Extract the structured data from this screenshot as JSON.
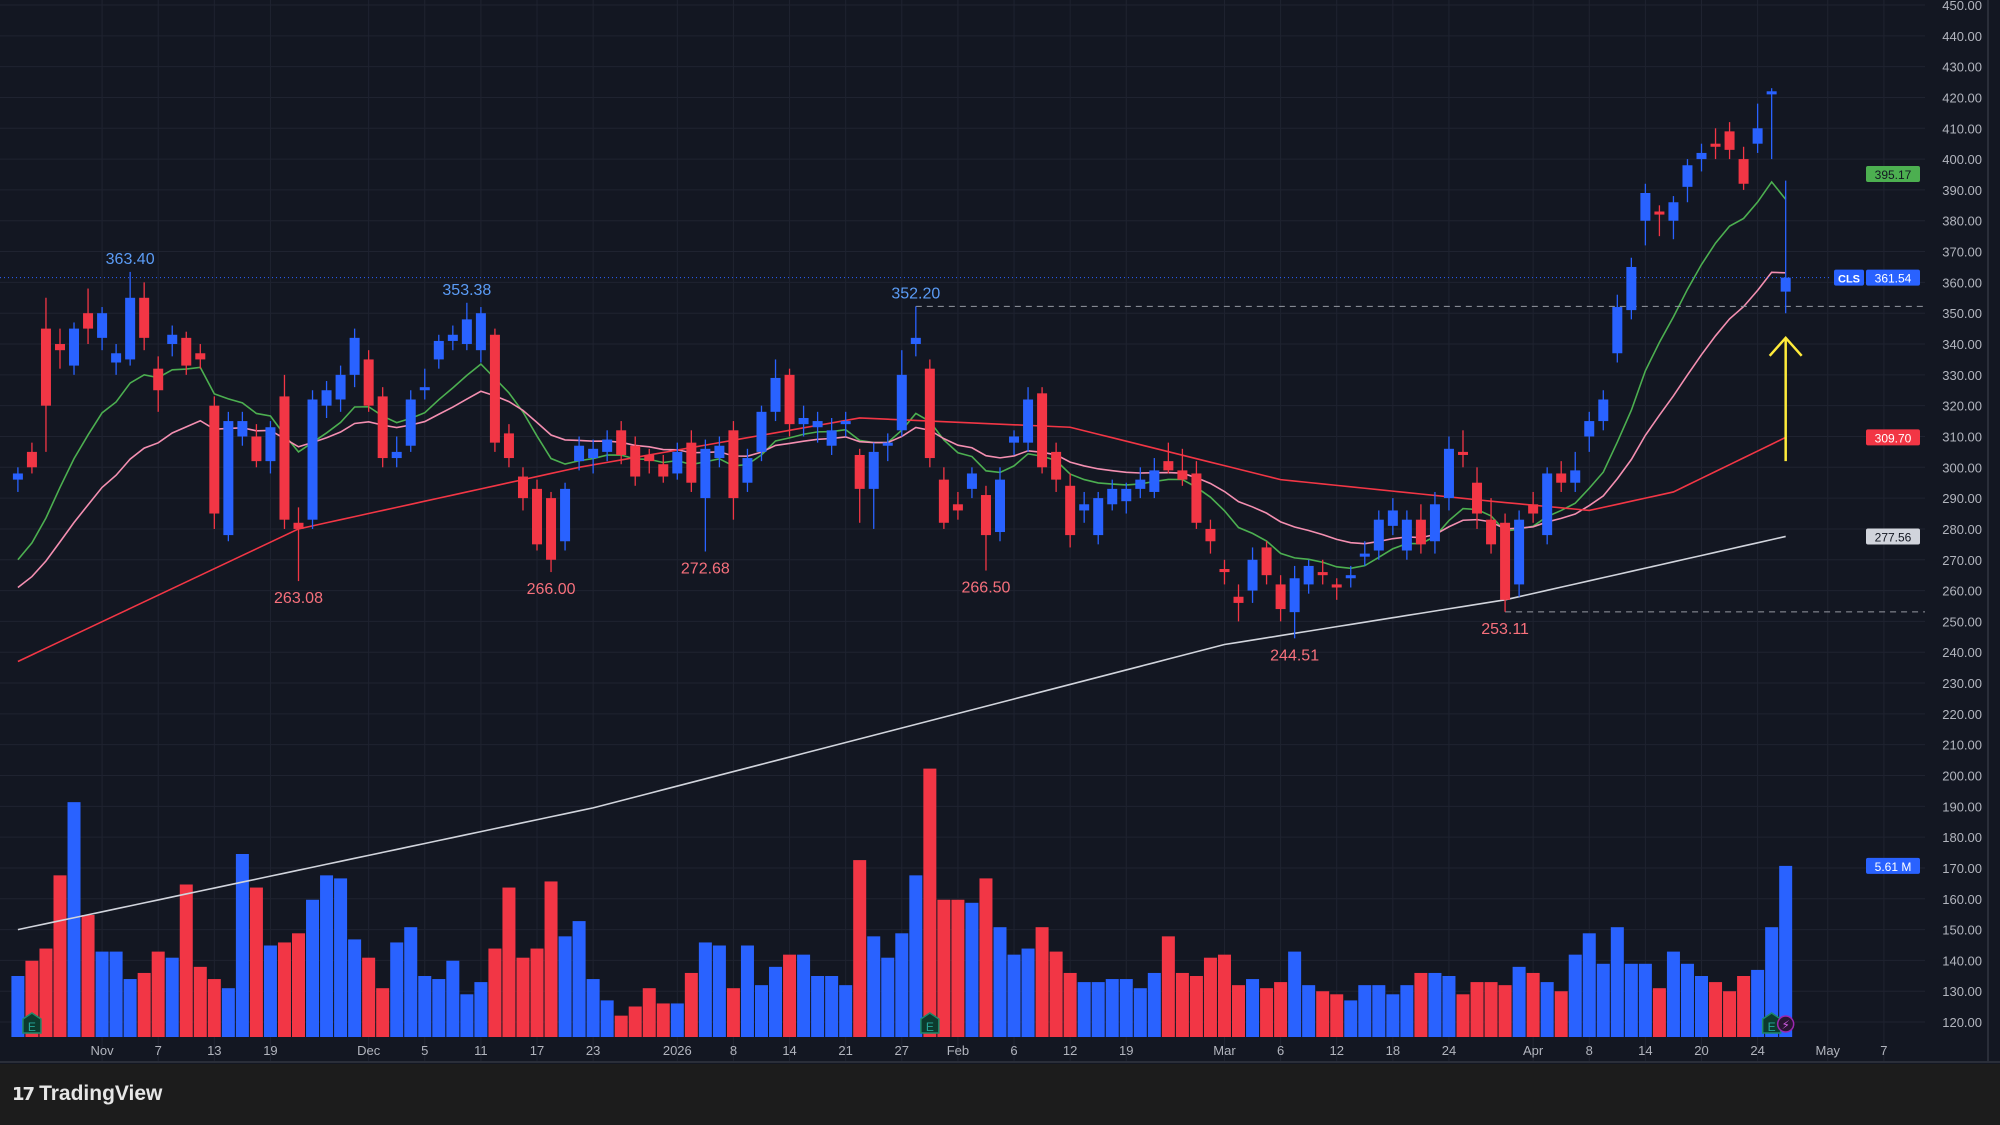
{
  "chart_data": {
    "type": "candlestick",
    "symbol": "CLS",
    "last_price": "361.54",
    "ylim": [
      115,
      450
    ],
    "y_ticks": [
      120,
      130,
      140,
      150,
      160,
      170,
      180,
      190,
      200,
      210,
      220,
      230,
      240,
      250,
      260,
      270,
      280,
      290,
      300,
      310,
      320,
      330,
      340,
      350,
      360,
      370,
      380,
      390,
      400,
      410,
      420,
      430,
      440,
      450
    ],
    "x_ticks": [
      {
        "label": "Nov",
        "i": 6
      },
      {
        "label": "7",
        "i": 10
      },
      {
        "label": "13",
        "i": 14
      },
      {
        "label": "19",
        "i": 18
      },
      {
        "label": "Dec",
        "i": 25
      },
      {
        "label": "5",
        "i": 29
      },
      {
        "label": "11",
        "i": 33
      },
      {
        "label": "17",
        "i": 37
      },
      {
        "label": "23",
        "i": 41
      },
      {
        "label": "2026",
        "i": 47
      },
      {
        "label": "8",
        "i": 51
      },
      {
        "label": "14",
        "i": 55
      },
      {
        "label": "21",
        "i": 59
      },
      {
        "label": "27",
        "i": 63
      },
      {
        "label": "Feb",
        "i": 67
      },
      {
        "label": "6",
        "i": 71
      },
      {
        "label": "12",
        "i": 75
      },
      {
        "label": "19",
        "i": 79
      },
      {
        "label": "Mar",
        "i": 86
      },
      {
        "label": "6",
        "i": 90
      },
      {
        "label": "12",
        "i": 94
      },
      {
        "label": "18",
        "i": 98
      },
      {
        "label": "24",
        "i": 102
      },
      {
        "label": "Apr",
        "i": 108
      },
      {
        "label": "8",
        "i": 112
      },
      {
        "label": "14",
        "i": 116
      },
      {
        "label": "20",
        "i": 120
      },
      {
        "label": "24",
        "i": 124
      },
      {
        "label": "May",
        "i": 129
      },
      {
        "label": "7",
        "i": 133
      }
    ],
    "ohlc": [
      [
        296,
        300,
        292,
        298
      ],
      [
        305,
        308,
        298,
        300
      ],
      [
        345,
        355,
        305,
        320
      ],
      [
        340,
        345,
        332,
        338
      ],
      [
        333,
        347,
        330,
        345
      ],
      [
        350,
        358,
        340,
        345
      ],
      [
        342,
        352,
        338,
        350
      ],
      [
        334,
        340,
        330,
        337
      ],
      [
        335,
        363.4,
        333,
        355
      ],
      [
        355,
        360,
        338,
        342
      ],
      [
        332,
        336,
        318,
        325
      ],
      [
        340,
        346,
        336,
        343
      ],
      [
        342,
        344,
        330,
        333
      ],
      [
        337,
        340,
        332,
        335
      ],
      [
        320,
        323,
        280,
        285
      ],
      [
        278,
        318,
        276,
        315
      ],
      [
        310,
        318,
        307,
        315
      ],
      [
        310,
        314,
        300,
        302
      ],
      [
        302,
        315,
        298,
        313
      ],
      [
        323,
        330,
        280,
        283
      ],
      [
        282,
        287,
        263.08,
        280
      ],
      [
        283,
        325,
        280,
        322
      ],
      [
        320,
        328,
        316,
        325
      ],
      [
        322,
        333,
        318,
        330
      ],
      [
        330,
        345,
        326,
        342
      ],
      [
        335,
        338,
        318,
        320
      ],
      [
        323,
        326,
        300,
        303
      ],
      [
        303,
        310,
        300,
        305
      ],
      [
        307,
        325,
        305,
        322
      ],
      [
        325,
        332,
        322,
        326
      ],
      [
        335,
        343,
        332,
        341
      ],
      [
        341,
        346,
        338,
        343
      ],
      [
        340,
        353.38,
        338,
        348
      ],
      [
        338,
        352,
        334,
        350
      ],
      [
        343,
        345,
        305,
        308
      ],
      [
        311,
        314,
        300,
        303
      ],
      [
        297,
        300,
        286,
        290
      ],
      [
        293,
        296,
        273,
        275
      ],
      [
        290,
        292,
        266,
        270
      ],
      [
        276,
        295,
        273,
        293
      ],
      [
        302,
        310,
        299,
        307
      ],
      [
        303,
        309,
        298,
        306
      ],
      [
        305,
        312,
        302,
        309
      ],
      [
        312,
        315,
        301,
        304
      ],
      [
        307,
        310,
        294,
        297
      ],
      [
        304,
        306,
        298,
        302
      ],
      [
        301,
        304,
        295,
        297
      ],
      [
        298,
        308,
        296,
        305
      ],
      [
        308,
        312,
        292,
        295
      ],
      [
        290,
        309,
        272.68,
        306
      ],
      [
        303,
        310,
        300,
        307
      ],
      [
        312,
        315,
        283,
        290
      ],
      [
        295,
        306,
        292,
        303
      ],
      [
        305,
        320,
        302,
        318
      ],
      [
        318,
        335,
        315,
        329
      ],
      [
        330,
        332,
        310,
        314
      ],
      [
        314,
        320,
        310,
        316
      ],
      [
        313,
        318,
        308,
        315
      ],
      [
        307,
        316,
        304,
        312
      ],
      [
        314,
        318,
        310,
        315
      ],
      [
        304,
        306,
        282,
        293
      ],
      [
        293,
        308,
        280,
        305
      ],
      [
        307,
        311,
        302,
        308
      ],
      [
        312,
        338,
        310,
        330
      ],
      [
        340,
        352.2,
        336,
        342
      ],
      [
        332,
        335,
        300,
        303
      ],
      [
        296,
        300,
        280,
        282
      ],
      [
        288,
        292,
        283,
        286
      ],
      [
        293,
        300,
        290,
        298
      ],
      [
        291,
        294,
        266.5,
        278
      ],
      [
        279,
        300,
        276,
        296
      ],
      [
        308,
        312,
        304,
        310
      ],
      [
        308,
        326,
        305,
        322
      ],
      [
        324,
        326,
        298,
        300
      ],
      [
        305,
        308,
        292,
        296
      ],
      [
        294,
        298,
        274,
        278
      ],
      [
        286,
        292,
        282,
        288
      ],
      [
        278,
        292,
        275,
        290
      ],
      [
        288,
        296,
        286,
        293
      ],
      [
        289,
        295,
        285,
        293
      ],
      [
        293,
        300,
        290,
        296
      ],
      [
        292,
        303,
        290,
        299
      ],
      [
        302,
        308,
        298,
        299
      ],
      [
        299,
        306,
        294,
        296
      ],
      [
        298,
        302,
        280,
        282
      ],
      [
        280,
        283,
        272,
        276
      ],
      [
        267,
        270,
        262,
        266
      ],
      [
        258,
        262,
        250,
        256
      ],
      [
        260,
        274,
        256,
        270
      ],
      [
        274,
        276,
        262,
        265
      ],
      [
        262,
        265,
        250,
        254
      ],
      [
        253,
        268,
        244.51,
        264
      ],
      [
        262,
        270,
        259,
        268
      ],
      [
        266,
        270,
        262,
        265
      ],
      [
        262,
        264,
        257,
        261
      ],
      [
        264,
        268,
        261,
        265
      ],
      [
        271,
        276,
        268,
        272
      ],
      [
        273,
        286,
        270,
        283
      ],
      [
        281,
        290,
        278,
        286
      ],
      [
        273,
        286,
        270,
        283
      ],
      [
        283,
        288,
        272,
        275
      ],
      [
        276,
        292,
        272,
        288
      ],
      [
        290,
        310,
        286,
        306
      ],
      [
        305,
        312,
        300,
        304
      ],
      [
        295,
        300,
        280,
        285
      ],
      [
        283,
        290,
        272,
        275
      ],
      [
        282,
        285,
        253.11,
        257
      ],
      [
        262,
        286,
        258,
        283
      ],
      [
        288,
        292,
        282,
        285
      ],
      [
        278,
        300,
        275,
        298
      ],
      [
        298,
        302,
        292,
        295
      ],
      [
        295,
        305,
        292,
        299
      ],
      [
        310,
        318,
        305,
        315
      ],
      [
        315,
        325,
        312,
        322
      ],
      [
        337,
        356,
        334,
        352
      ],
      [
        351,
        368,
        348,
        365
      ],
      [
        380,
        392,
        372,
        389
      ],
      [
        383,
        385,
        375,
        382
      ],
      [
        380,
        388,
        374,
        386
      ],
      [
        391,
        400,
        386,
        398
      ],
      [
        400,
        405,
        396,
        402
      ],
      [
        405,
        410,
        400,
        404
      ],
      [
        409,
        412,
        400,
        403
      ],
      [
        400,
        404,
        390,
        392
      ],
      [
        405,
        418,
        402,
        410
      ],
      [
        421,
        423,
        400,
        422
      ],
      [
        357,
        393,
        350,
        361.54
      ]
    ],
    "volume_millions": [
      2.0,
      2.5,
      2.9,
      5.3,
      7.7,
      4.0,
      2.8,
      2.8,
      1.9,
      2.1,
      2.8,
      2.6,
      5.0,
      2.3,
      1.9,
      1.6,
      6.0,
      4.9,
      3.0,
      3.1,
      3.4,
      4.5,
      5.3,
      5.2,
      3.2,
      2.6,
      1.6,
      3.1,
      3.6,
      2.0,
      1.9,
      2.5,
      1.4,
      1.8,
      2.9,
      4.9,
      2.6,
      2.9,
      5.1,
      3.3,
      3.8,
      1.9,
      1.2,
      0.7,
      1.0,
      1.6,
      1.1,
      1.1,
      2.1,
      3.1,
      3.0,
      1.6,
      3.0,
      1.7,
      2.3,
      2.7,
      2.7,
      2.0,
      2.0,
      1.7,
      5.8,
      3.3,
      2.6,
      3.4,
      5.3,
      8.8,
      4.5,
      4.5,
      4.4,
      5.2,
      3.6,
      2.7,
      2.9,
      3.6,
      2.8,
      2.1,
      1.8,
      1.8,
      1.9,
      1.9,
      1.6,
      2.1,
      3.3,
      2.1,
      2.0,
      2.6,
      2.7,
      1.7,
      1.9,
      1.6,
      1.8,
      2.8,
      1.7,
      1.5,
      1.4,
      1.2,
      1.7,
      1.7,
      1.4,
      1.7,
      2.1,
      2.1,
      2.0,
      1.4,
      1.8,
      1.8,
      1.7,
      2.3,
      2.1,
      1.8,
      1.5,
      2.7,
      3.4,
      2.4,
      3.6,
      2.4,
      2.4,
      1.6,
      2.8,
      2.4,
      2.0,
      1.8,
      1.5,
      2.0,
      2.2,
      3.6,
      5.61
    ],
    "last_volume_label": "5.61 M",
    "moving_averages": [
      {
        "kind": "ema",
        "period": 10,
        "seed": 270,
        "color": "#4caf50",
        "label": "395.17"
      },
      {
        "kind": "ema",
        "period": 21,
        "seed": 261,
        "color": "#f48fb1",
        "label": ""
      },
      {
        "kind": "points",
        "color": "#f23645",
        "label": "309.70",
        "points": [
          [
            0,
            237
          ],
          [
            20,
            280
          ],
          [
            40,
            300
          ],
          [
            60,
            316
          ],
          [
            75,
            313
          ],
          [
            90,
            296
          ],
          [
            105,
            289
          ],
          [
            112,
            286
          ],
          [
            118,
            292
          ],
          [
            126,
            309.7
          ]
        ]
      },
      {
        "kind": "points",
        "color": "#d1d4dc",
        "label": "277.56",
        "points": [
          [
            0,
            150
          ],
          [
            41,
            189.5
          ],
          [
            86,
            242.5
          ],
          [
            106,
            257
          ],
          [
            126,
            277.56
          ]
        ]
      }
    ],
    "annotations": [
      {
        "text": "363.40",
        "i": 8,
        "price": 363.4,
        "type": "high"
      },
      {
        "text": "353.38",
        "i": 32,
        "price": 353.38,
        "type": "high"
      },
      {
        "text": "352.20",
        "i": 64,
        "price": 352.2,
        "type": "high"
      },
      {
        "text": "263.08",
        "i": 20,
        "price": 263.08,
        "type": "low"
      },
      {
        "text": "266.00",
        "i": 38,
        "price": 266,
        "type": "low"
      },
      {
        "text": "272.68",
        "i": 49,
        "price": 272.68,
        "type": "low"
      },
      {
        "text": "266.50",
        "i": 69,
        "price": 266.5,
        "type": "low"
      },
      {
        "text": "244.51",
        "i": 91,
        "price": 244.51,
        "type": "low"
      },
      {
        "text": "253.11",
        "i": 106,
        "price": 253.11,
        "type": "low"
      }
    ],
    "dashed_levels": [
      {
        "price": 352.2,
        "from_i": 64
      },
      {
        "price": 253.11,
        "from_i": 106
      }
    ],
    "arrow": {
      "i": 126,
      "from": 302,
      "to": 342,
      "color": "#ffeb3b"
    },
    "earnings_markers": [
      1,
      65,
      125
    ],
    "dividend_marker": 126,
    "colors": {
      "up": "#2962ff",
      "down": "#f23645",
      "background": "#131722",
      "grid": "#1f2330"
    }
  },
  "footer": {
    "brand": "TradingView"
  }
}
